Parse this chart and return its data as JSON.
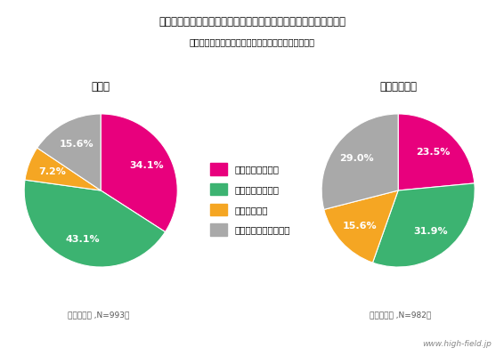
{
  "title": "「あなたは、１人で利用する場合、どの飲食店を利用しますか？」",
  "subtitle": "（アンケート対象者：関東圏在住２０歳以上の男女）",
  "pie1_title": "全　体",
  "pie1_note": "（単一回答 ,N=993）",
  "pie1_values": [
    34.1,
    43.1,
    7.2,
    15.6
  ],
  "pie2_title": "飲食業従事者",
  "pie2_note": "（単一回答 ,N=982）",
  "pie2_values": [
    23.5,
    31.9,
    15.6,
    29.0
  ],
  "labels": [
    "屋内完全禁煙の店",
    "分煙されている店",
    "喫煙ＯＫの店",
    "どちらでも気にしない"
  ],
  "colors": [
    "#E8007D",
    "#3CB371",
    "#F5A623",
    "#A9A9A9"
  ],
  "background_color": "#FFFFFF",
  "watermark": "www.high-field.jp"
}
